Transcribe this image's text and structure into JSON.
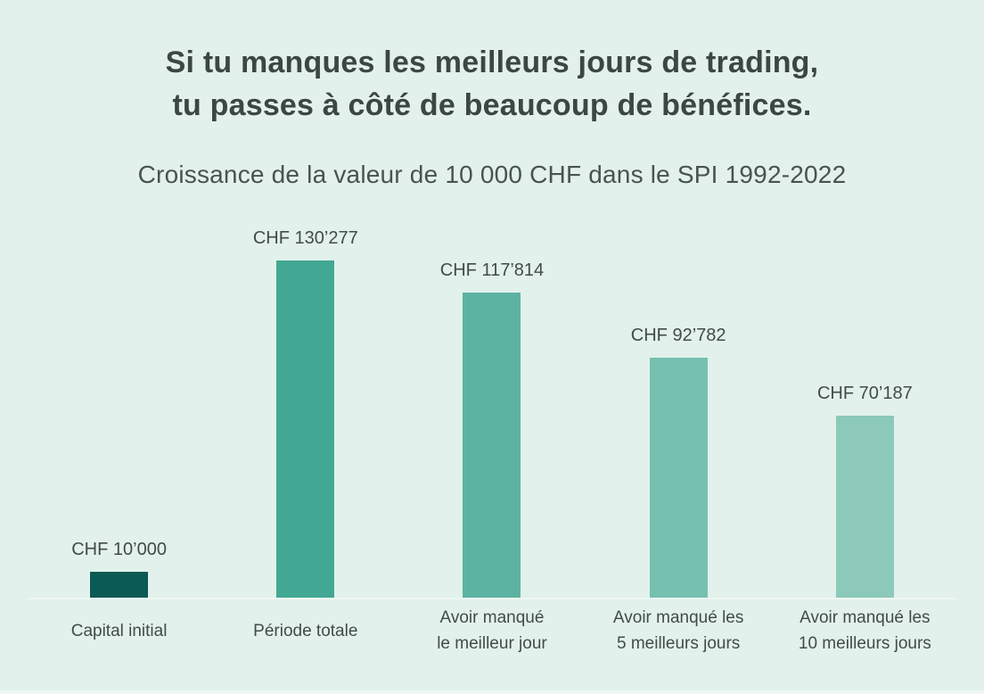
{
  "headline": {
    "line1": "Si tu manques les meilleurs jours de trading,",
    "line2": "tu passes à côté de beaucoup de bénéfices."
  },
  "chart_data": {
    "type": "bar",
    "title": "Croissance de la valeur de 10 000 CHF dans le SPI 1992-2022",
    "categories": [
      "Capital initial",
      "Période totale",
      "Avoir manqué le meilleur jour",
      "Avoir manqué les 5 meilleurs jours",
      "Avoir manqué les 10 meilleurs jours"
    ],
    "category_label_lines": [
      [
        "Capital initial"
      ],
      [
        "Période totale"
      ],
      [
        "Avoir manqué",
        "le meilleur jour"
      ],
      [
        "Avoir manqué les",
        "5 meilleurs jours"
      ],
      [
        "Avoir manqué les",
        "10 meilleurs jours"
      ]
    ],
    "values": [
      10000,
      130277,
      117814,
      92782,
      70187
    ],
    "value_labels": [
      "CHF 10’000",
      "CHF 130’277",
      "CHF 117’814",
      "CHF 92’782",
      "CHF 70’187"
    ],
    "bar_colors": [
      "#0b5a53",
      "#43a893",
      "#5cb3a1",
      "#76c0b0",
      "#8cc9ba"
    ],
    "currency": "CHF",
    "ylim": [
      0,
      150000
    ],
    "grid": false,
    "legend": "none",
    "period": "1992-2022",
    "index_name": "SPI"
  },
  "colors": {
    "background": "#e2f1ec",
    "headline_text": "#3c4644",
    "subtitle_text": "#49534f",
    "label_text": "#414c49",
    "axis_line": "#eef6f2"
  }
}
